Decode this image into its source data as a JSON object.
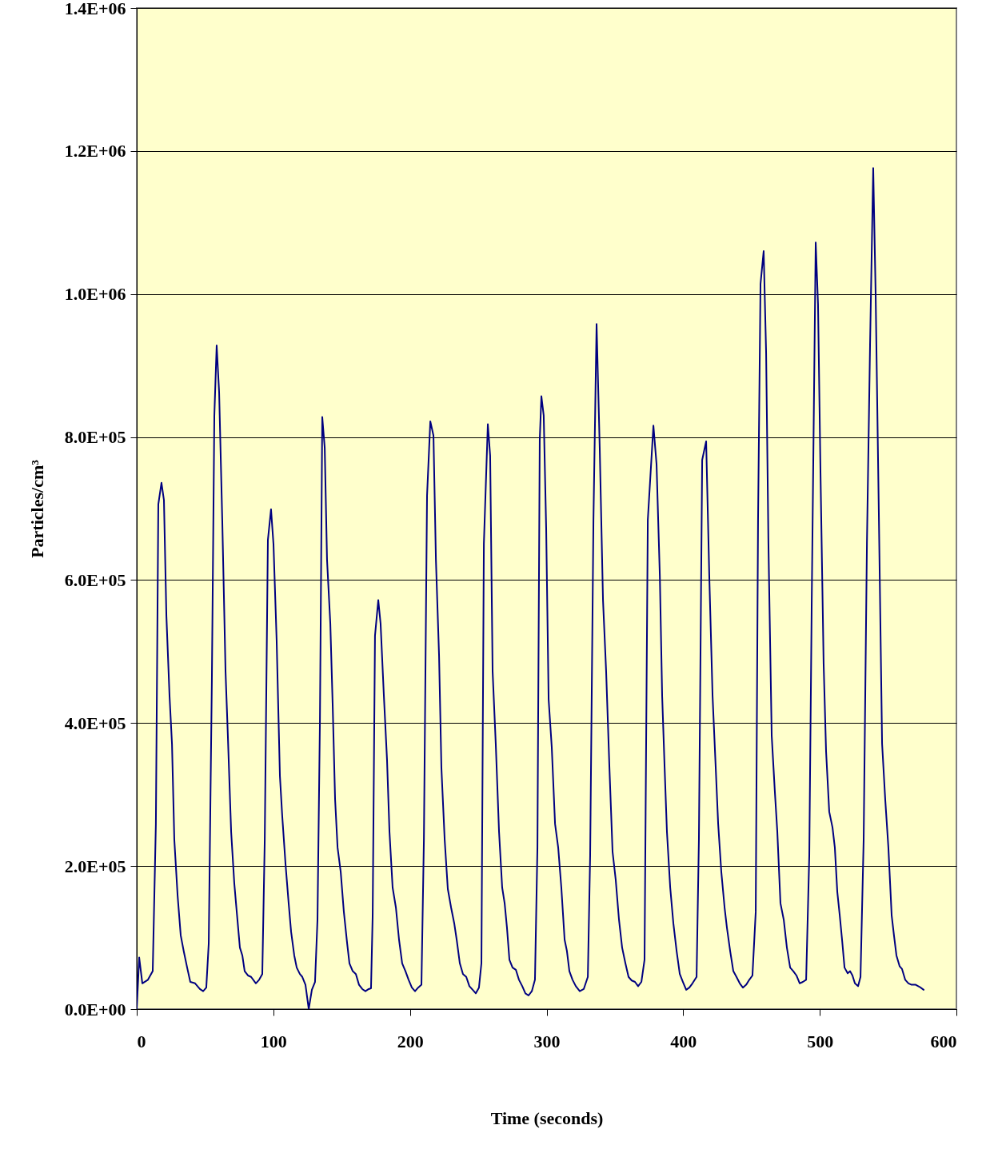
{
  "chart_data": {
    "type": "line",
    "xlabel": "Time (seconds)",
    "ylabel": "Particles/cm³",
    "x": [
      0,
      1.8,
      4.1,
      8.2,
      11.7,
      14,
      15.8,
      18.1,
      19.9,
      21.7,
      24,
      25.8,
      27.5,
      29.9,
      32.2,
      34.5,
      36.9,
      39.2,
      42.7,
      46.2,
      48.6,
      50.9,
      52.7,
      55,
      56.8,
      58.5,
      60.3,
      62.6,
      65,
      66.7,
      69.1,
      71.4,
      73.2,
      75.5,
      77.3,
      79,
      81.4,
      83.7,
      87.2,
      89.6,
      91.9,
      93.7,
      96,
      98.3,
      100.1,
      102.4,
      104.8,
      106.5,
      108.9,
      111.2,
      113,
      115.3,
      117.1,
      119.4,
      121.2,
      123.5,
      125.9,
      128.2,
      130.5,
      132.3,
      134.1,
      135.8,
      137.6,
      139.3,
      141.7,
      143.4,
      145.2,
      147,
      149.3,
      151.6,
      154,
      155.7,
      158.1,
      160.4,
      162.7,
      165.1,
      167.4,
      169.8,
      171.5,
      172.7,
      174.4,
      176.8,
      178.5,
      180.9,
      183.2,
      185,
      187.3,
      189.7,
      192,
      194.3,
      196.7,
      199,
      201.4,
      203.7,
      206,
      208.4,
      210.2,
      212.5,
      214.9,
      217.2,
      219,
      221.3,
      223,
      225.4,
      227.7,
      230.1,
      232.4,
      234.2,
      236.5,
      238.8,
      241.2,
      243.5,
      245.9,
      248.2,
      250.5,
      252.3,
      254.1,
      257,
      258.7,
      260.5,
      262.8,
      265.2,
      267.5,
      269.3,
      271,
      272.8,
      275.1,
      277.5,
      279.8,
      282.2,
      284.5,
      286.8,
      289.2,
      291.5,
      293.3,
      295,
      296.2,
      297.9,
      299.7,
      301.5,
      303.8,
      306.2,
      308.5,
      310.8,
      313.2,
      314.9,
      316.7,
      319,
      321.4,
      324.3,
      327.2,
      330.2,
      331.9,
      334.3,
      336.6,
      338.9,
      341.3,
      343.6,
      346,
      348.3,
      350.6,
      353,
      355.3,
      357.7,
      360,
      362.3,
      364.7,
      367,
      369.4,
      371.7,
      374.1,
      378.2,
      380.5,
      382.9,
      384.6,
      386.4,
      388.1,
      390.5,
      392.8,
      395.2,
      397.5,
      399.8,
      402.2,
      404.5,
      406.8,
      409.8,
      411.5,
      413.9,
      416.8,
      419.1,
      421.5,
      423.8,
      425.6,
      427.9,
      430.3,
      432,
      434.4,
      436.7,
      439,
      441.4,
      443.7,
      446.1,
      448.4,
      450.7,
      453.1,
      454.8,
      456.6,
      458.9,
      460.7,
      462.4,
      464.8,
      467.1,
      468.9,
      471.2,
      473.6,
      475.9,
      478.3,
      480.6,
      482.9,
      485.3,
      487.6,
      490,
      492.3,
      494.1,
      497,
      498.7,
      500.5,
      502.8,
      504.6,
      506.9,
      509.3,
      511,
      512.8,
      514.6,
      516.3,
      518.1,
      520.4,
      522.2,
      523.9,
      525.7,
      528,
      529.8,
      532.1,
      534.5,
      536.8,
      539.1,
      540.9,
      543.2,
      545.6,
      547.9,
      550.2,
      552.6,
      554.3,
      556.1,
      558.4,
      560.2,
      562.5,
      564.9,
      567.2,
      570.2,
      573.1,
      576
    ],
    "series": [
      {
        "color": "#000080",
        "values": [
          0,
          72000,
          36000,
          41000,
          53000,
          259000,
          706000,
          736000,
          712000,
          550000,
          438000,
          371000,
          237000,
          159000,
          103000,
          80000,
          58000,
          38000,
          36000,
          28000,
          25000,
          30000,
          92000,
          461000,
          830000,
          928000,
          863000,
          684000,
          472000,
          382000,
          248000,
          176000,
          136000,
          86000,
          75000,
          53000,
          47000,
          45000,
          36000,
          41000,
          49000,
          237000,
          656000,
          699000,
          650000,
          516000,
          326000,
          270000,
          203000,
          148000,
          108000,
          75000,
          58000,
          49000,
          45000,
          34000,
          0,
          27000,
          38000,
          125000,
          405000,
          828000,
          785000,
          628000,
          539000,
          427000,
          293000,
          226000,
          192000,
          136000,
          92000,
          64000,
          53000,
          49000,
          34000,
          28000,
          25000,
          28000,
          29000,
          131000,
          522000,
          572000,
          539000,
          438000,
          349000,
          248000,
          170000,
          142000,
          97000,
          64000,
          53000,
          41000,
          30000,
          25000,
          30000,
          34000,
          237000,
          718000,
          822000,
          802000,
          628000,
          494000,
          338000,
          237000,
          168000,
          142000,
          120000,
          97000,
          64000,
          49000,
          45000,
          32000,
          27000,
          22000,
          30000,
          64000,
          651000,
          818000,
          774000,
          472000,
          371000,
          248000,
          170000,
          148000,
          114000,
          69000,
          58000,
          55000,
          41000,
          32000,
          22000,
          19000,
          25000,
          41000,
          226000,
          796000,
          857000,
          830000,
          673000,
          433000,
          366000,
          259000,
          226000,
          170000,
          97000,
          81000,
          53000,
          41000,
          32000,
          25000,
          28000,
          45000,
          215000,
          684000,
          958000,
          785000,
          572000,
          472000,
          338000,
          220000,
          181000,
          125000,
          86000,
          64000,
          45000,
          40000,
          38000,
          32000,
          38000,
          69000,
          684000,
          816000,
          762000,
          606000,
          438000,
          338000,
          248000,
          170000,
          120000,
          81000,
          49000,
          38000,
          27000,
          30000,
          36000,
          45000,
          237000,
          768000,
          794000,
          606000,
          438000,
          338000,
          259000,
          192000,
          142000,
          114000,
          81000,
          53000,
          45000,
          36000,
          30000,
          34000,
          41000,
          47000,
          136000,
          684000,
          1014000,
          1060000,
          919000,
          651000,
          382000,
          304000,
          248000,
          148000,
          125000,
          86000,
          58000,
          53000,
          47000,
          36000,
          38000,
          41000,
          215000,
          572000,
          1072000,
          986000,
          751000,
          483000,
          360000,
          276000,
          254000,
          226000,
          164000,
          131000,
          97000,
          58000,
          50000,
          53000,
          47000,
          36000,
          32000,
          45000,
          237000,
          651000,
          930000,
          1176000,
          997000,
          695000,
          371000,
          293000,
          226000,
          131000,
          103000,
          75000,
          60000,
          56000,
          41000,
          36000,
          34000,
          34000,
          31000,
          27000
        ]
      }
    ],
    "xlim": [
      0,
      600
    ],
    "xticks": [
      0,
      100,
      200,
      300,
      400,
      500,
      600
    ],
    "ylim": [
      0,
      1400000
    ],
    "yticks": [
      {
        "value": 0,
        "label": "0.0E+00"
      },
      {
        "value": 200000,
        "label": "2.0E+05"
      },
      {
        "value": 400000,
        "label": "4.0E+05"
      },
      {
        "value": 600000,
        "label": "6.0E+05"
      },
      {
        "value": 800000,
        "label": "8.0E+05"
      },
      {
        "value": 1000000,
        "label": "1.0E+06"
      },
      {
        "value": 1200000,
        "label": "1.2E+06"
      },
      {
        "value": 1400000,
        "label": "1.4E+06"
      }
    ],
    "grid": "y"
  }
}
